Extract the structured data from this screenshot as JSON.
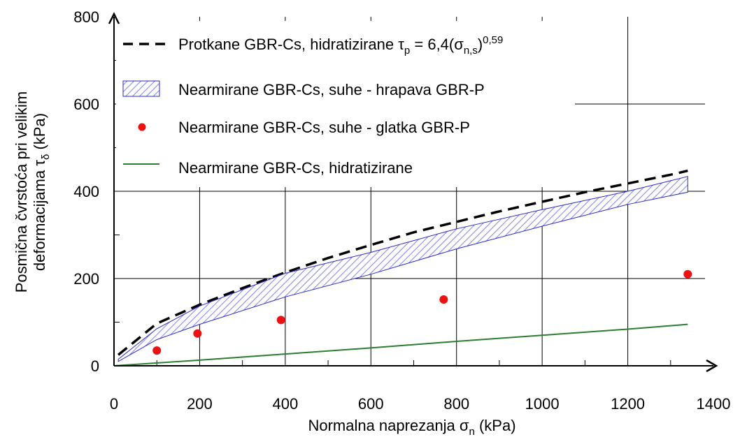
{
  "chart_data": {
    "type": "line",
    "xlabel": "Normalna naprezanja σn (kPa)",
    "ylabel": "Posmična čvrstoća pri velikim deformacijama τδ (kPa)",
    "xlim": [
      0,
      1400
    ],
    "ylim": [
      0,
      800
    ],
    "x_ticks": [
      "0",
      "200",
      "400",
      "600",
      "800",
      "1000",
      "1200",
      "1400"
    ],
    "y_ticks": [
      "0",
      "200",
      "400",
      "600",
      "800"
    ],
    "grid": true,
    "legend_position": "top-left",
    "series": [
      {
        "name": "Protkane GBR-Cs, hidratizirane τp = 6,4(σn,s)0,59",
        "style": "dashed-line",
        "color": "#000000",
        "points": [
          [
            10,
            25
          ],
          [
            100,
            97
          ],
          [
            200,
            140
          ],
          [
            300,
            178
          ],
          [
            400,
            214
          ],
          [
            500,
            247
          ],
          [
            600,
            277
          ],
          [
            700,
            306
          ],
          [
            800,
            330
          ],
          [
            900,
            354
          ],
          [
            1000,
            376
          ],
          [
            1100,
            398
          ],
          [
            1200,
            418
          ],
          [
            1300,
            438
          ],
          [
            1340,
            447
          ]
        ]
      },
      {
        "name": "Nearmirane GBR-Cs, suhe - hrapava GBR-P",
        "style": "hatched-band",
        "color": "#3333cc",
        "upper": [
          [
            10,
            15
          ],
          [
            100,
            85
          ],
          [
            200,
            137
          ],
          [
            400,
            212
          ],
          [
            600,
            260
          ],
          [
            800,
            314
          ],
          [
            1000,
            358
          ],
          [
            1200,
            400
          ],
          [
            1340,
            434
          ]
        ],
        "lower": [
          [
            10,
            10
          ],
          [
            100,
            60
          ],
          [
            200,
            95
          ],
          [
            400,
            158
          ],
          [
            600,
            210
          ],
          [
            800,
            268
          ],
          [
            1000,
            320
          ],
          [
            1200,
            370
          ],
          [
            1340,
            398
          ]
        ]
      },
      {
        "name": "Nearmirane GBR-Cs, suhe - glatka GBR-P",
        "style": "points",
        "color": "#ee1111",
        "points": [
          [
            100,
            35
          ],
          [
            195,
            74
          ],
          [
            390,
            105
          ],
          [
            770,
            152
          ],
          [
            1340,
            210
          ]
        ]
      },
      {
        "name": "Nearmirane GBR-Cs, hidratizirane",
        "style": "solid-line",
        "color": "#2e7d32",
        "points": [
          [
            0,
            0
          ],
          [
            200,
            13
          ],
          [
            400,
            27
          ],
          [
            600,
            41
          ],
          [
            800,
            56
          ],
          [
            1000,
            70
          ],
          [
            1200,
            84
          ],
          [
            1340,
            95
          ]
        ]
      }
    ]
  },
  "legend": {
    "dashed_label": "Protkane GBR-Cs, hidratizirane τ",
    "dashed_sub_p": "p",
    "dashed_eq": " = 6,4(σ",
    "dashed_sub_ns": "n,s",
    "dashed_close": ")",
    "dashed_sup": "0,59",
    "band_label": "Nearmirane GBR-Cs, suhe - hrapava GBR-P",
    "points_label": "Nearmirane GBR-Cs, suhe - glatka GBR-P",
    "green_label": "Nearmirane GBR-Cs, hidratizirane"
  },
  "axis_titles": {
    "x_main": "Normalna naprezanja σ",
    "x_sub": "n",
    "x_tail": " (kPa)",
    "y_line1": "Posmična čvrstoća pri velikim",
    "y_line2_main": "deformacijama τ",
    "y_line2_sub": "δ",
    "y_line2_tail": " (kPa)"
  }
}
